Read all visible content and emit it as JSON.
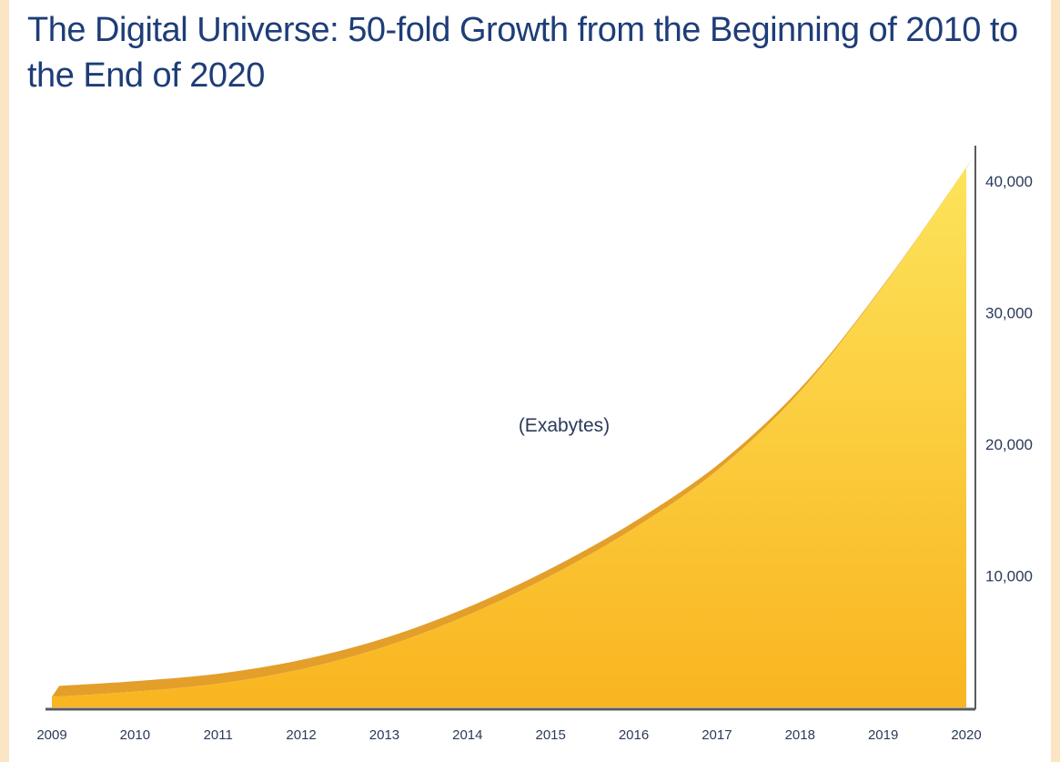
{
  "chart_data": {
    "type": "area",
    "title": "The Digital Universe: 50-fold Growth from the Beginning of 2010 to the End of 2020",
    "unit_label": "(Exabytes)",
    "x": [
      "2009",
      "2010",
      "2011",
      "2012",
      "2013",
      "2014",
      "2015",
      "2016",
      "2017",
      "2018",
      "2019",
      "2020"
    ],
    "series": [
      {
        "values": [
          800,
          1200,
          1800,
          2900,
          4600,
          7000,
          10000,
          13600,
          18000,
          24000,
          32000,
          41000
        ]
      }
    ],
    "ylim": [
      0,
      42000
    ],
    "y_ticks": [
      "10,000",
      "20,000",
      "30,000",
      "40,000"
    ],
    "y_tick_values": [
      10000,
      20000,
      30000,
      40000
    ],
    "y_axis_side": "right",
    "grid": false,
    "colors": {
      "fill_top": "#fde35a",
      "fill_bottom": "#f9b520",
      "edge": "#e39f2a",
      "axis": "#5a5a5a",
      "title": "#1e3d78",
      "frame": "#fbe5c4"
    }
  }
}
